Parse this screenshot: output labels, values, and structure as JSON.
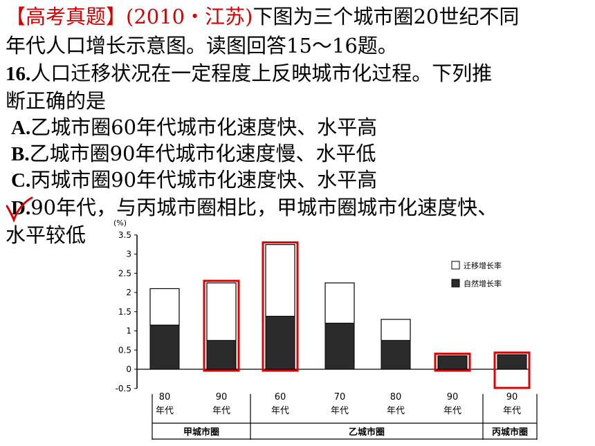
{
  "question": {
    "source": "【高考真题】(2010・江苏)",
    "intro_1": "下图为三个城市圈20世纪不同",
    "intro_2": "年代人口增长示意图。读图回答15～16题。",
    "stem_num": "16.",
    "stem_1": "人口迁移状况在一定程度上反映城市化过程。下列推",
    "stem_2": "断正确的是",
    "options": [
      {
        "letter": "A.",
        "text": "乙城市圈60年代城市化速度快、水平高"
      },
      {
        "letter": "B.",
        "text": "乙城市圈90年代城市化速度慢、水平低"
      },
      {
        "letter": "C.",
        "text": "丙城市圈90年代城市化速度快、水平高"
      },
      {
        "letter": "D.",
        "text": "90年代，与丙城市圈相比，甲城市圈城市化速度快、",
        "text_2": "水平较低"
      }
    ]
  },
  "chart_data": {
    "type": "bar",
    "stacked": true,
    "yunit": "(%)",
    "ylim": [
      -0.5,
      3.5
    ],
    "yticks": [
      "3.5",
      "3",
      "2.5",
      "2",
      "1.5",
      "1",
      "0.5",
      "0",
      "-0.5"
    ],
    "bars": [
      {
        "label_1": "80",
        "label_2": "年代",
        "group": 0,
        "natural": 1.15,
        "migration": 0.95,
        "highlight": false
      },
      {
        "label_1": "90",
        "label_2": "年代",
        "group": 0,
        "natural": 0.75,
        "migration": 1.5,
        "highlight": true
      },
      {
        "label_1": "60",
        "label_2": "年代",
        "group": 1,
        "natural": 1.38,
        "migration": 1.87,
        "highlight": true
      },
      {
        "label_1": "70",
        "label_2": "年代",
        "group": 1,
        "natural": 1.2,
        "migration": 1.05,
        "highlight": false
      },
      {
        "label_1": "80",
        "label_2": "年代",
        "group": 1,
        "natural": 0.75,
        "migration": 0.55,
        "highlight": false
      },
      {
        "label_1": "90",
        "label_2": "年代",
        "group": 1,
        "natural": 0.35,
        "migration": 0.0,
        "highlight": true
      },
      {
        "label_1": "90",
        "label_2": "年代",
        "group": 2,
        "natural": 0.38,
        "migration": -0.45,
        "highlight": true
      }
    ],
    "groups": [
      "甲城市圈",
      "乙城市圈",
      "丙城市圈"
    ],
    "legend": {
      "migration": "迁移增长率",
      "natural": "自然增长率",
      "placement": "top-right"
    },
    "colors": {
      "natural": "#2b2b2b",
      "migration": "#ffffff",
      "highlight": "#e00000",
      "answer_mark": "#e00000"
    }
  }
}
